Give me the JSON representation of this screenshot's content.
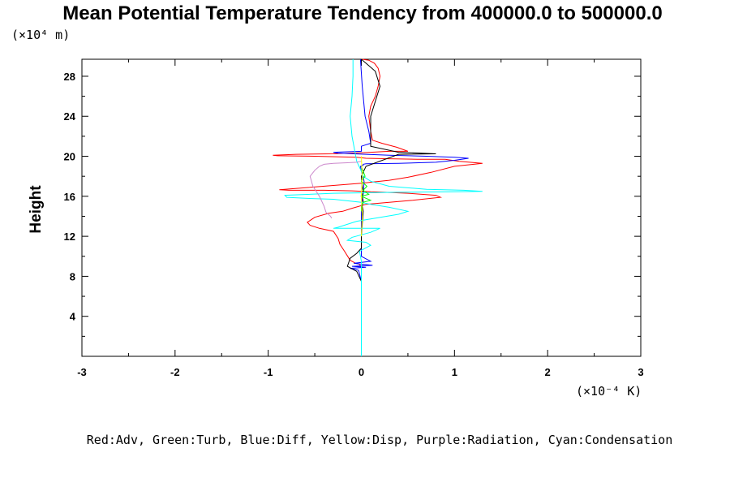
{
  "chart_data": {
    "type": "line",
    "title": "Mean Potential Temperature Tendency from 400000.0 to 500000.0",
    "ylabel": "Height",
    "y_unit": "(×10⁴ m)",
    "x_unit": "(×10⁻⁴ K)",
    "legend_text": "Red:Adv, Green:Turb, Blue:Diff, Yellow:Disp, Purple:Radiation, Cyan:Condensation",
    "xlim": [
      -3,
      3
    ],
    "ylim": [
      0,
      29.7
    ],
    "xticks": [
      "-3",
      "-2",
      "-1",
      "0",
      "1",
      "2",
      "3"
    ],
    "yticks": [
      "4",
      "8",
      "12",
      "16",
      "20",
      "24",
      "28"
    ],
    "ytick_values": [
      4,
      8,
      12,
      16,
      20,
      24,
      28
    ],
    "xtick_values": [
      -3,
      -2,
      -1,
      0,
      1,
      2,
      3
    ],
    "series": [
      {
        "color": "#ff0000",
        "x": [
          0,
          0,
          0,
          0,
          0,
          -0.02,
          -0.06,
          -0.12,
          -0.18,
          -0.23,
          -0.25,
          -0.3,
          -0.45,
          -0.55,
          -0.58,
          -0.5,
          -0.35,
          -0.2,
          -0.1,
          0.05,
          0.55,
          0.85,
          0.8,
          0.5,
          0.25,
          0.1,
          0.02,
          -0.1,
          -0.4,
          -0.78,
          -0.88,
          0.0,
          0.3,
          0.5,
          0.75,
          1.0,
          1.3,
          1.05,
          0.9,
          0.6,
          0.3,
          0.05,
          0,
          -0.05,
          -0.5,
          -0.9,
          -0.95,
          -0.7,
          -0.3,
          0.0,
          0.3,
          0.5,
          0.38,
          0.22,
          0.12,
          0.1,
          0.08,
          0.1,
          0.15,
          0.18,
          0.2,
          0.18,
          0.14,
          0.08,
          0.01
        ],
        "y": [
          0,
          6,
          7.5,
          8.3,
          8.9,
          9.2,
          9.3,
          9.6,
          10.5,
          11.2,
          11.8,
          12.5,
          12.8,
          13.1,
          13.4,
          13.9,
          14.3,
          14.5,
          14.8,
          15.2,
          15.6,
          15.9,
          16.1,
          16.3,
          16.4,
          16.45,
          16.5,
          16.55,
          16.6,
          16.6,
          16.65,
          17.3,
          17.6,
          17.9,
          18.4,
          19.0,
          19.3,
          19.5,
          19.7,
          19.7,
          19.75,
          19.8,
          19.85,
          19.9,
          20.0,
          20.05,
          20.1,
          20.2,
          20.25,
          20.35,
          20.5,
          20.5,
          20.9,
          21.3,
          21.6,
          22.5,
          24.0,
          25.0,
          26.0,
          27.0,
          28.0,
          28.8,
          29.3,
          29.6,
          29.7
        ]
      },
      {
        "color": "#0000ff",
        "x": [
          0,
          0,
          0,
          -0.03,
          -0.12,
          0.05,
          -0.1,
          0.12,
          -0.08,
          0.1,
          0,
          0,
          0,
          0.02,
          0.03,
          0,
          -0.01,
          0.02,
          0.02,
          0.05,
          0.4,
          0.8,
          1.0,
          1.15,
          1.0,
          0.7,
          0.3,
          0.05,
          -0.25,
          -0.3,
          0,
          0,
          0.1,
          0.08,
          0.04,
          0.01,
          -0.01
        ],
        "y": [
          0,
          5,
          7.5,
          8.6,
          8.8,
          8.9,
          9.0,
          9.1,
          9.3,
          9.5,
          10.0,
          12,
          15,
          16.3,
          17.5,
          18.5,
          19.0,
          19.1,
          19.2,
          19.25,
          19.3,
          19.4,
          19.6,
          19.8,
          19.9,
          20.0,
          20.1,
          20.2,
          20.3,
          20.4,
          20.5,
          21.0,
          21.3,
          22.5,
          24.0,
          27.0,
          29.7
        ]
      },
      {
        "color": "#000000",
        "x": [
          0,
          0,
          0,
          -0.05,
          -0.15,
          -0.12,
          -0.05,
          0,
          0,
          0.02,
          0.01,
          0.02,
          0.01,
          0.02,
          0.01,
          0,
          0.05,
          0.4,
          0.8,
          0.4,
          0.1,
          0.1,
          0.2,
          0.15,
          0.05,
          0
        ],
        "y": [
          0,
          5,
          7.5,
          8.5,
          9.0,
          9.8,
          10.3,
          10.8,
          12,
          14.5,
          15.0,
          15.5,
          16.0,
          16.5,
          17.0,
          18.0,
          19.0,
          20.2,
          20.25,
          20.4,
          21.0,
          24.0,
          27.0,
          28.5,
          29.3,
          29.7
        ]
      },
      {
        "color": "#00ffff",
        "x": [
          0,
          0,
          0,
          0,
          -0.02,
          0.1,
          0.05,
          -0.15,
          -0.1,
          0.1,
          0.2,
          -0.3,
          -0.25,
          -0.05,
          0.4,
          0.5,
          0.3,
          0.1,
          0,
          -0.3,
          -0.6,
          -0.8,
          -0.82,
          -0.3,
          0.4,
          1.0,
          1.3,
          1.1,
          0.7,
          0.3,
          0.1,
          0.02,
          0,
          -0.05,
          -0.1,
          -0.12,
          -0.1,
          -0.09,
          -0.09
        ],
        "y": [
          0,
          5,
          7.5,
          9.5,
          10.5,
          11.1,
          11.4,
          11.6,
          11.9,
          12.4,
          12.8,
          12.8,
          12.9,
          13.5,
          14.2,
          14.5,
          14.9,
          15.2,
          15.4,
          15.7,
          15.8,
          15.9,
          16.1,
          16.3,
          16.4,
          16.45,
          16.5,
          16.6,
          16.7,
          17.0,
          17.5,
          18.0,
          18.5,
          19.5,
          22.0,
          24.0,
          26.0,
          28.0,
          29.7
        ]
      },
      {
        "color": "#cc88cc",
        "x": [
          -0.32,
          -0.33,
          -0.38,
          -0.4,
          -0.45,
          -0.52,
          -0.55,
          -0.5,
          -0.45,
          -0.4,
          -0.3,
          -0.15,
          -0.05,
          0
        ],
        "y": [
          13.8,
          14.0,
          14.4,
          15.0,
          16.0,
          17.0,
          18.0,
          18.6,
          19.0,
          19.2,
          19.3,
          19.35,
          19.4,
          19.5
        ]
      },
      {
        "color": "#00ff00",
        "x": [
          0,
          0,
          0.02,
          0.1,
          0.0,
          0.08,
          0.02,
          0.06,
          0.0,
          0.04,
          0.02,
          0
        ],
        "y": [
          14.5,
          15.0,
          15.4,
          15.6,
          16.0,
          16.2,
          16.6,
          17.0,
          17.5,
          18.0,
          18.5,
          19.0
        ]
      },
      {
        "color": "#ffff00",
        "x": [
          0,
          0.01,
          0,
          0.01,
          0
        ],
        "y": [
          12,
          14,
          16,
          18,
          20
        ]
      }
    ]
  }
}
